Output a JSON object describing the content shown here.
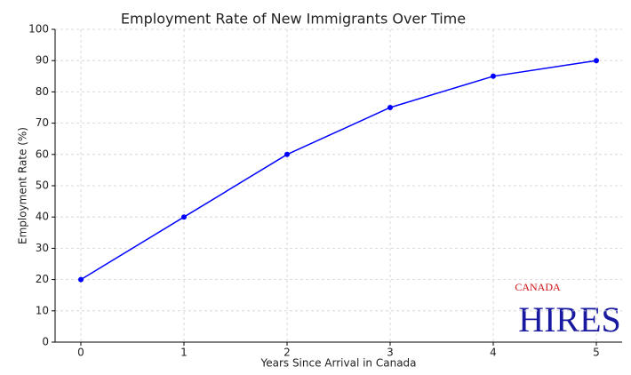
{
  "chart_data": {
    "type": "line",
    "title": "Employment Rate of New Immigrants Over Time",
    "x_label": "Years Since Arrival in Canada",
    "y_label": "Employment Rate (%)",
    "x": [
      0,
      1,
      2,
      3,
      4,
      5
    ],
    "series": [
      {
        "name": "Employment Rate",
        "color": "#0000ff",
        "values": [
          20,
          40,
          60,
          75,
          85,
          90
        ]
      }
    ],
    "xlim": [
      -0.25,
      5.25
    ],
    "xticks": [
      0,
      1,
      2,
      3,
      4,
      5
    ],
    "ylim": [
      0,
      100
    ],
    "yticks": [
      0,
      10,
      20,
      30,
      40,
      50,
      60,
      70,
      80,
      90,
      100
    ],
    "grid": true,
    "legend": false
  },
  "logo": {
    "top": "CANADA",
    "name": "HIRES"
  }
}
